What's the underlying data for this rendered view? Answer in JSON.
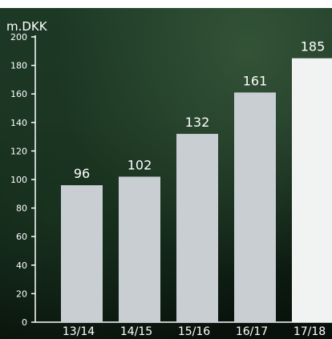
{
  "chart_data": {
    "type": "bar",
    "ylabel": "m.DKK",
    "categories": [
      "13/14",
      "14/15",
      "15/16",
      "16/17",
      "17/18"
    ],
    "values": [
      96,
      102,
      132,
      161,
      185
    ],
    "data_labels": [
      "96",
      "102",
      "132",
      "161",
      "185"
    ],
    "ylim": [
      0,
      200
    ],
    "yticks": [
      0,
      20,
      40,
      60,
      80,
      100,
      120,
      140,
      160,
      180,
      200
    ],
    "grid": false,
    "colors": {
      "bar": "#c9ced3",
      "highlight_bar": "#f0f3f2",
      "axis": "#ffffff",
      "text": "#ffffff"
    }
  }
}
